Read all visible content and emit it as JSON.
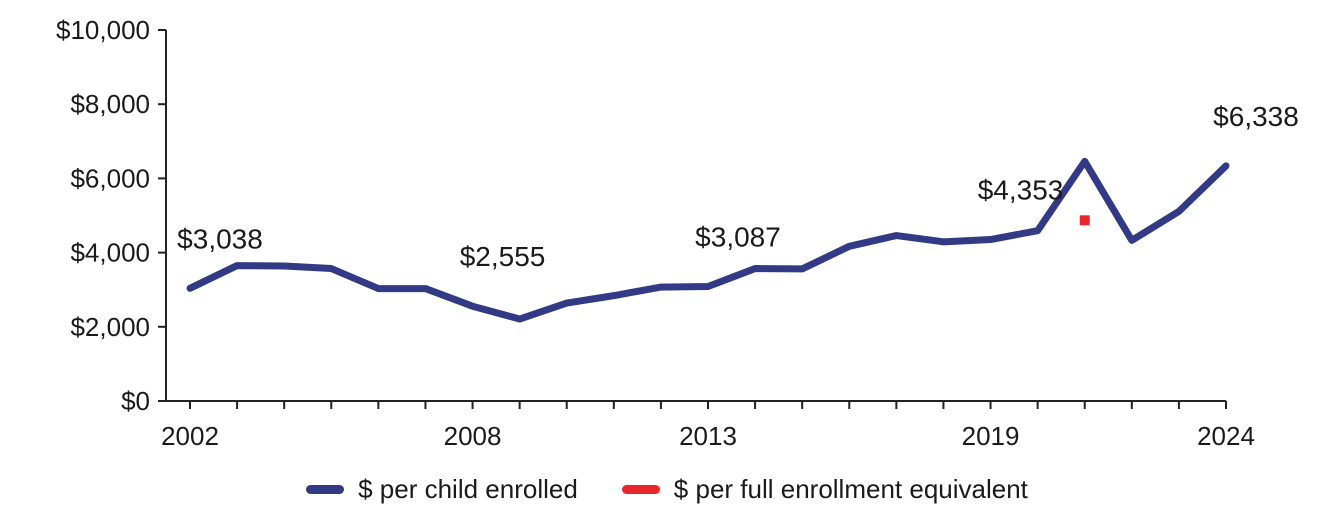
{
  "chart_data": {
    "type": "line",
    "title": "",
    "xlabel": "",
    "ylabel": "",
    "ylim": [
      0,
      10000
    ],
    "y_ticks": [
      0,
      2000,
      4000,
      6000,
      8000,
      10000
    ],
    "y_tick_labels": [
      "$0",
      "$2,000",
      "$4,000",
      "$6,000",
      "$8,000",
      "$10,000"
    ],
    "x_range": [
      2002,
      2024
    ],
    "x_tick_years": [
      2002,
      2008,
      2013,
      2019,
      2024
    ],
    "x_tick_labels": [
      "2002",
      "2008",
      "2013",
      "2019",
      "2024"
    ],
    "grid": false,
    "legend_position": "bottom",
    "series": [
      {
        "name": "$ per child enrolled",
        "color": "#323a85",
        "style": "line",
        "x": [
          2002,
          2003,
          2004,
          2005,
          2006,
          2007,
          2008,
          2009,
          2010,
          2011,
          2012,
          2013,
          2014,
          2015,
          2016,
          2017,
          2018,
          2019,
          2020,
          2021,
          2022,
          2023,
          2024
        ],
        "values": [
          3038,
          3650,
          3640,
          3570,
          3030,
          3030,
          2555,
          2210,
          2640,
          2840,
          3070,
          3087,
          3570,
          3560,
          4170,
          4460,
          4290,
          4353,
          4590,
          6460,
          4330,
          5110,
          6338
        ]
      },
      {
        "name": "$ per full enrollment equivalent",
        "color": "#e8272c",
        "style": "marker",
        "x": [
          2021
        ],
        "values": [
          4870
        ]
      }
    ],
    "data_labels": [
      {
        "x": 2002,
        "y": 3038,
        "text": "$3,038"
      },
      {
        "x": 2008,
        "y": 2555,
        "text": "$2,555"
      },
      {
        "x": 2013,
        "y": 3087,
        "text": "$3,087"
      },
      {
        "x": 2019,
        "y": 4353,
        "text": "$4,353"
      },
      {
        "x": 2024,
        "y": 6338,
        "text": "$6,338"
      }
    ]
  }
}
